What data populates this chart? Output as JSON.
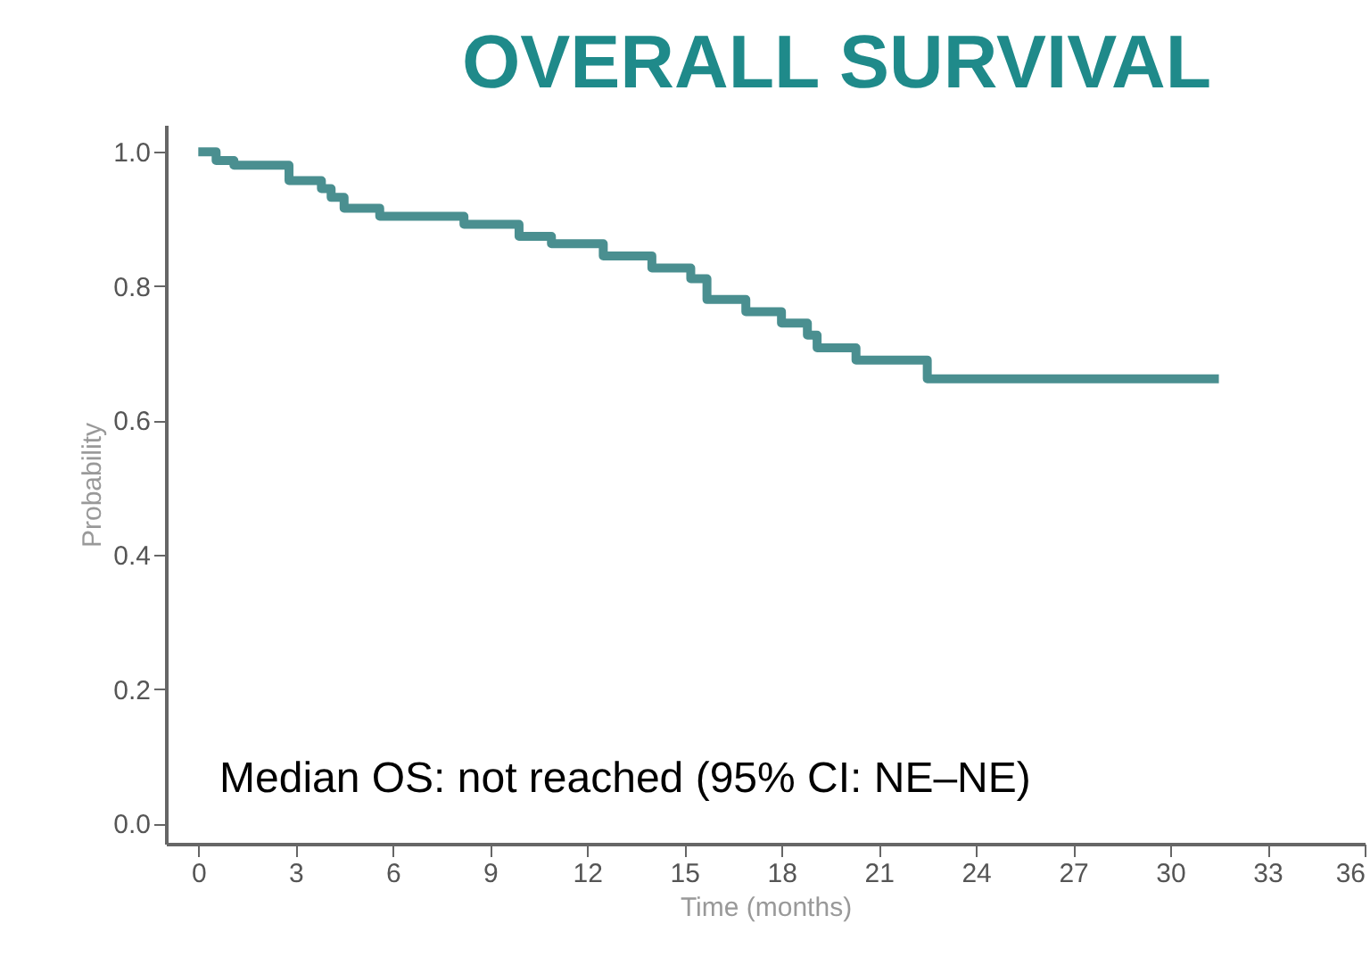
{
  "chart_data": {
    "type": "step",
    "title": "OVERALL SURVIVAL",
    "xlabel": "Time (months)",
    "ylabel": "Probability",
    "annotations": [
      "Median OS: not reached (95% CI: NE–NE)"
    ],
    "series": [
      {
        "color": "#4a8f90",
        "x": [
          0,
          0.55,
          1.1,
          2.8,
          3.8,
          4.1,
          4.5,
          5.6,
          8.2,
          9.9,
          10.9,
          12.5,
          14.0,
          15.2,
          15.7,
          16.9,
          18.0,
          18.8,
          19.1,
          20.3,
          22.5,
          31.5
        ],
        "values": [
          1.0,
          0.987,
          0.98,
          0.957,
          0.945,
          0.932,
          0.916,
          0.904,
          0.892,
          0.874,
          0.863,
          0.845,
          0.827,
          0.811,
          0.78,
          0.762,
          0.745,
          0.727,
          0.708,
          0.69,
          0.662,
          0.662
        ]
      }
    ],
    "xlim": [
      -1,
      36
    ],
    "xticks": [
      0,
      3,
      6,
      9,
      12,
      15,
      18,
      21,
      24,
      27,
      30,
      33,
      36
    ],
    "ylim": [
      -0.03,
      1.04
    ],
    "yticks": [
      {
        "value": 0,
        "label": "0.0"
      },
      {
        "value": 0.2,
        "label": "0.2"
      },
      {
        "value": 0.4,
        "label": "0.4"
      },
      {
        "value": 0.6,
        "label": "0.6"
      },
      {
        "value": 0.8,
        "label": "0.8"
      },
      {
        "value": 1,
        "label": "1.0"
      }
    ],
    "grid": false,
    "line_style": "solid",
    "marker": "none"
  }
}
